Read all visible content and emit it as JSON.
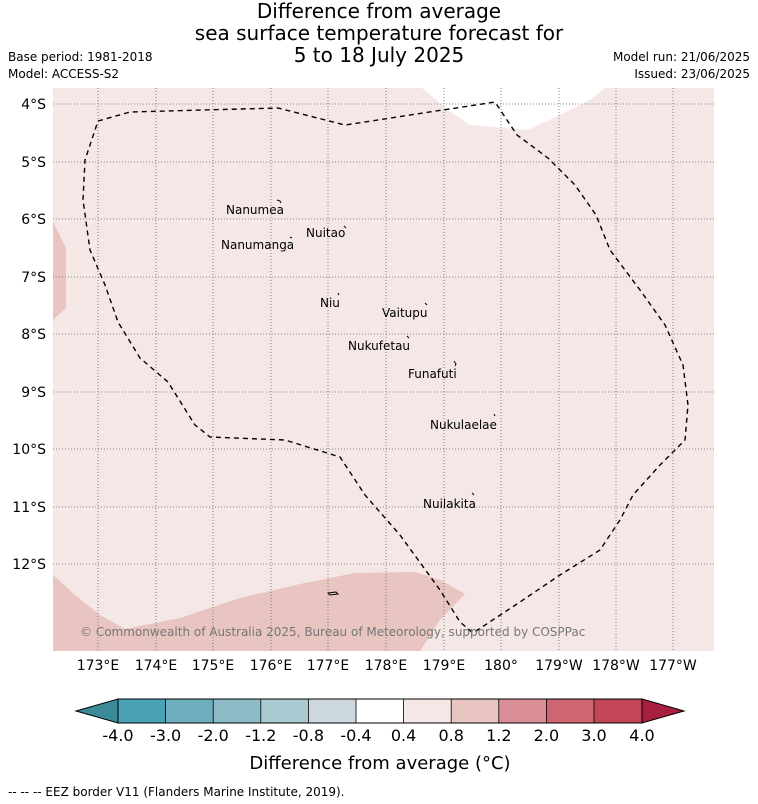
{
  "header": {
    "title_lines": [
      "Difference from average",
      "sea surface temperature forecast for",
      "5 to 18 July 2025"
    ],
    "base_period": "Base period: 1981-2018",
    "model": "Model: ACCESS-S2",
    "model_run": "Model run: 21/06/2025",
    "issued": "Issued: 23/06/2025"
  },
  "map": {
    "lat_labels": [
      "4°S",
      "5°S",
      "6°S",
      "7°S",
      "8°S",
      "9°S",
      "10°S",
      "11°S",
      "12°S"
    ],
    "lon_labels": [
      "173°E",
      "174°E",
      "175°E",
      "176°E",
      "177°E",
      "178°E",
      "179°E",
      "180°",
      "179°W",
      "178°W",
      "177°W"
    ],
    "places": [
      "Nanumea",
      "Nuitao",
      "Nanumanga",
      "Niu",
      "Vaitupu",
      "Nukufetau",
      "Funafuti",
      "Nukulaelae",
      "Nuilakita"
    ],
    "copyright": "© Commonwealth of Australia 2025, Bureau of Meteorology, supported by COSPPac",
    "colors": {
      "land_bg": "#f4e7e5",
      "warm_fill": "#e8c5c0",
      "no_anomaly": "#ffffff",
      "grid": "#666666",
      "eez": "#000000"
    }
  },
  "colorbar": {
    "labels": [
      "-4.0",
      "-3.0",
      "-2.0",
      "-1.2",
      "-0.8",
      "-0.4",
      "0.4",
      "0.8",
      "1.2",
      "2.0",
      "3.0",
      "4.0"
    ],
    "colors": [
      "#3b8a98",
      "#4aa3b4",
      "#6eafbd",
      "#8dbcc8",
      "#a9cad1",
      "#ccd8dd",
      "#ffffff",
      "#f4e7e5",
      "#e8c5c0",
      "#d98f95",
      "#cd6670",
      "#c24655",
      "#a82040"
    ],
    "label": "Difference from average (°C)"
  },
  "footer": {
    "eez_note": "--  --  -- EEZ border V11 (Flanders Marine Institute, 2019)."
  }
}
